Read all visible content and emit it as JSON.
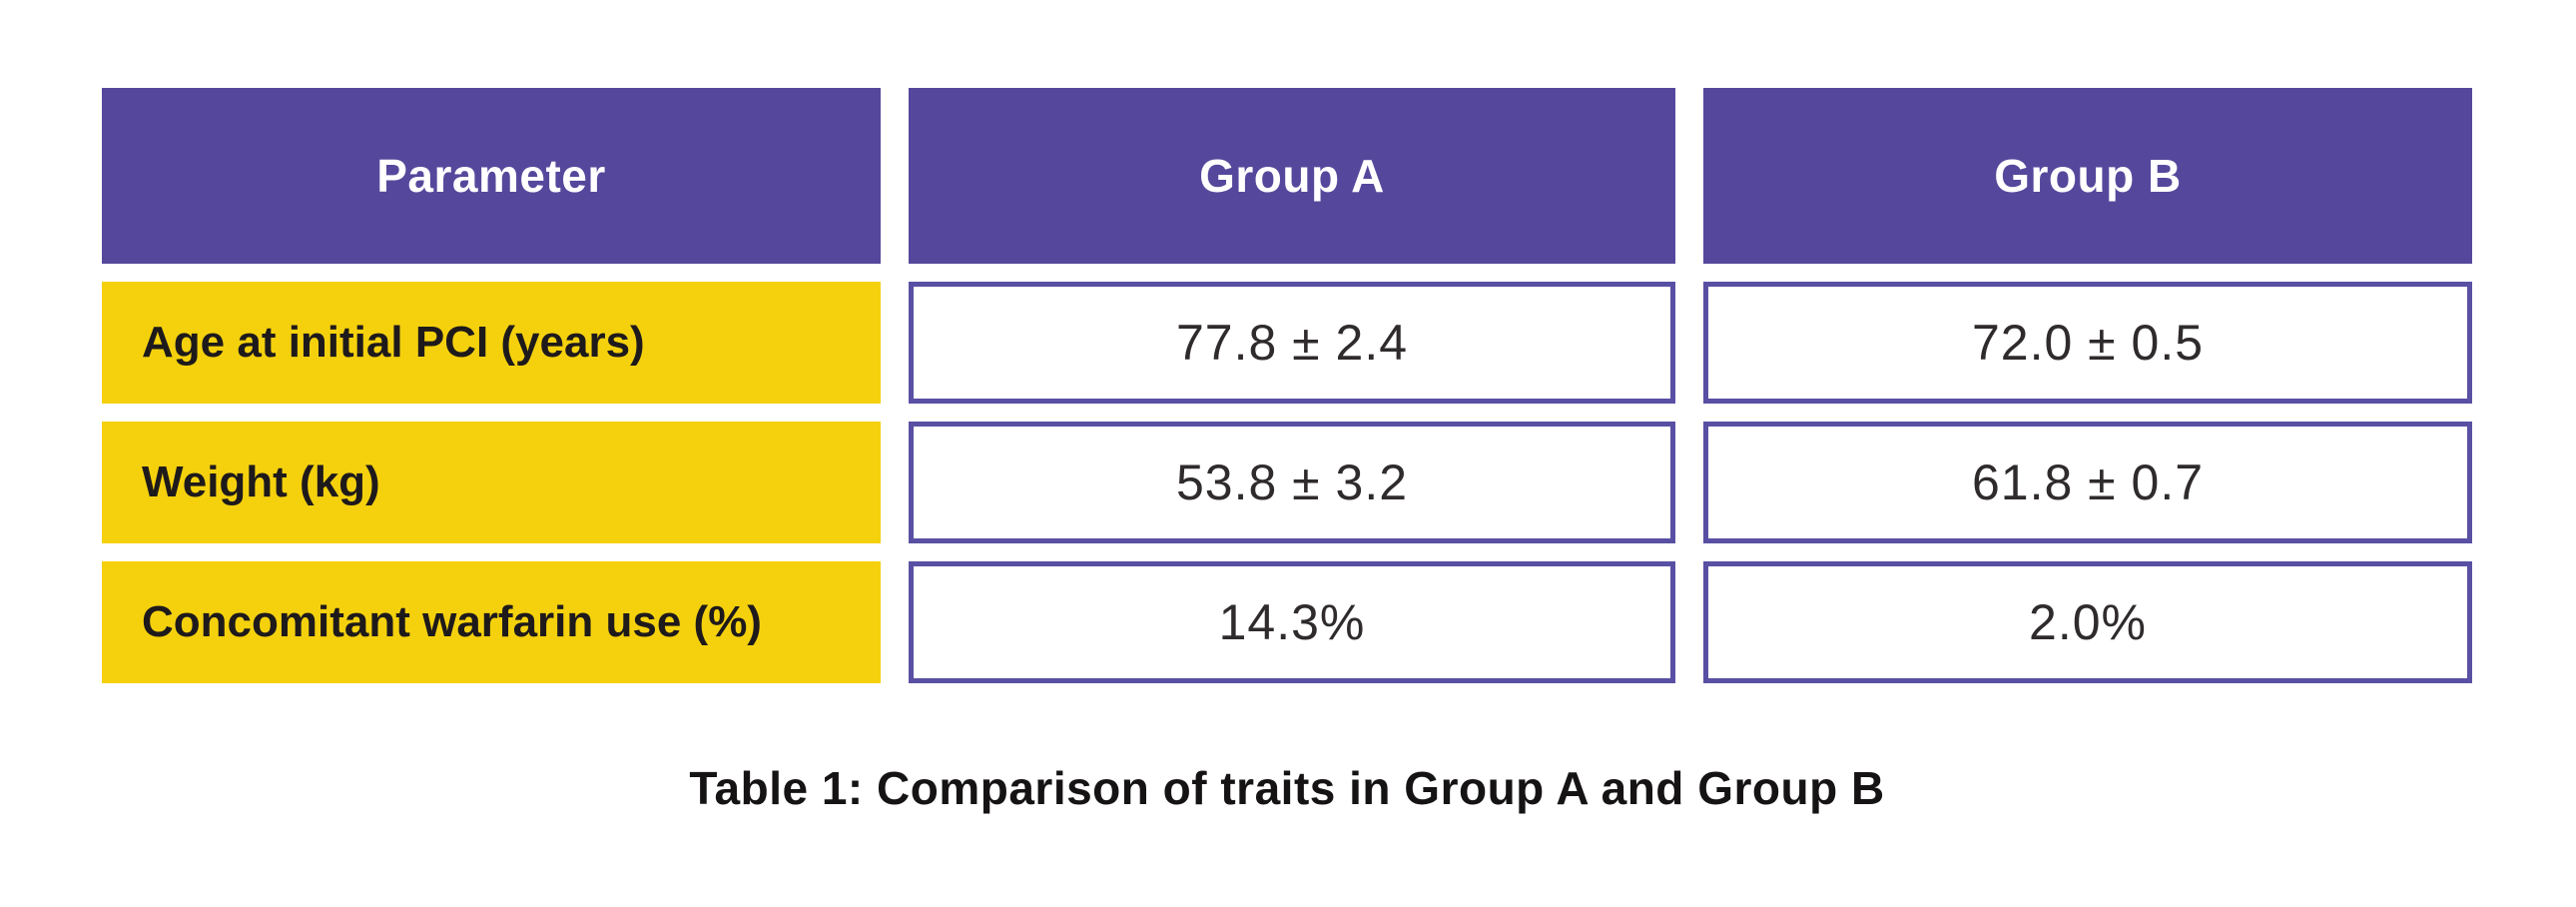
{
  "table": {
    "columns": {
      "parameter": "Parameter",
      "group_a": "Group A",
      "group_b": "Group B"
    },
    "rows": [
      {
        "label": "Age at initial PCI (years)",
        "group_a": "77.8 ± 2.4",
        "group_b": "72.0 ± 0.5"
      },
      {
        "label": "Weight (kg)",
        "group_a": "53.8 ± 3.2",
        "group_b": "61.8 ± 0.7"
      },
      {
        "label": "Concomitant warfarin use (%)",
        "group_a": "14.3%",
        "group_b": "2.0%"
      }
    ],
    "caption": "Table 1: Comparison of traits in Group A and Group B"
  },
  "chart_data": {
    "type": "table",
    "title": "Table 1: Comparison of traits in Group A and Group B",
    "columns": [
      "Parameter",
      "Group A",
      "Group B"
    ],
    "rows": [
      [
        "Age at initial PCI (years)",
        "77.8 ± 2.4",
        "72.0 ± 0.5"
      ],
      [
        "Weight (kg)",
        "53.8 ± 3.2",
        "61.8 ± 0.7"
      ],
      [
        "Concomitant warfarin use (%)",
        "14.3%",
        "2.0%"
      ]
    ],
    "legend_position": "none",
    "grid": false
  },
  "colors": {
    "header_purple": "#55489c",
    "value_border_purple": "#5950a3",
    "row_yellow": "#f5d10d",
    "label_text": "#1e1a1b",
    "value_text": "#2f2b2c",
    "caption_text": "#161314",
    "background": "#ffffff"
  }
}
